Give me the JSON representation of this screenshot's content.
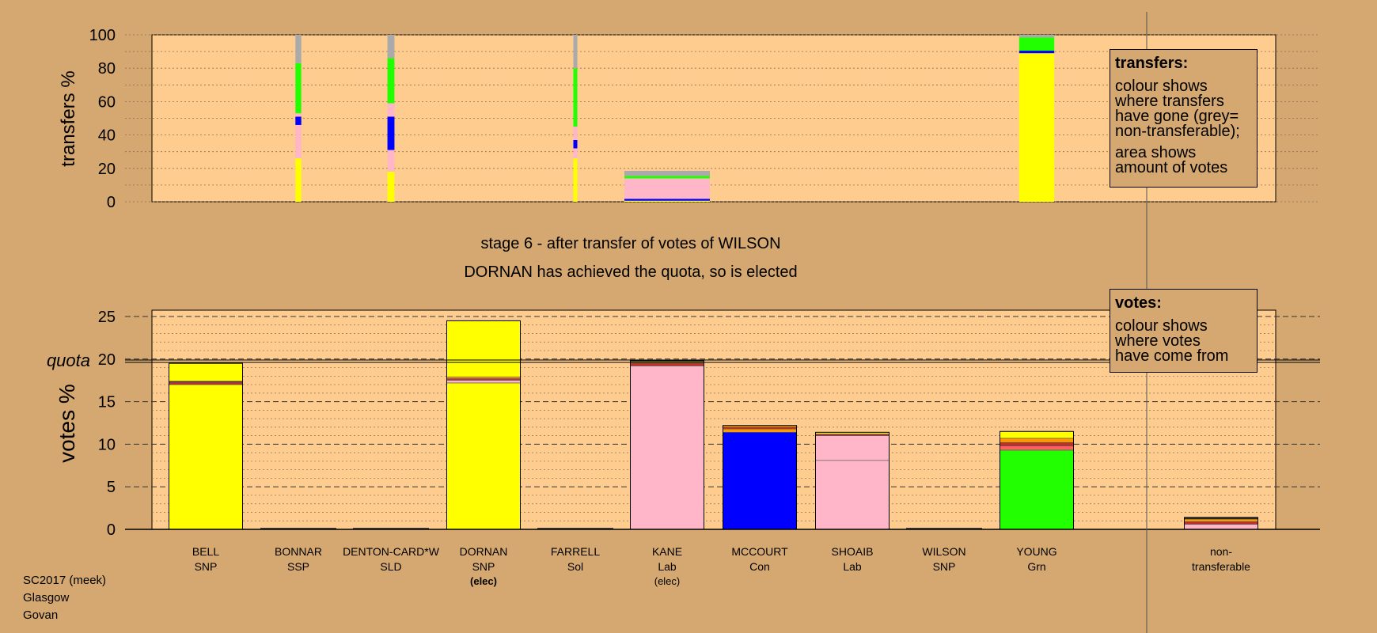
{
  "chart_data": [
    {
      "type": "bar",
      "stacked": true,
      "ylabel": "transfers %",
      "ylim": [
        0,
        100
      ],
      "yticks": [
        0,
        20,
        40,
        60,
        80,
        100
      ],
      "categories": [
        "BELL",
        "BONNAR",
        "DENTON-CARD*W",
        "DORNAN",
        "FARRELL",
        "KANE",
        "MCCOURT",
        "SHOAIB",
        "WILSON",
        "YOUNG"
      ],
      "bar_width_share": [
        0.3,
        0.5,
        0.6,
        0.5,
        0.3,
        7.3,
        0.0,
        0.0,
        0.0,
        3.0
      ],
      "segments": [
        [],
        [
          {
            "color": "#ffff00",
            "value": 26
          },
          {
            "color": "#ffb6c8",
            "value": 14
          },
          {
            "color": "#ffb6c8",
            "value": 6
          },
          {
            "color": "#0000ff",
            "value": 5
          },
          {
            "color": "#ffb6c8",
            "value": 2
          },
          {
            "color": "#22ff00",
            "value": 30
          },
          {
            "color": "#aaaaaa",
            "value": 17
          }
        ],
        [
          {
            "color": "#ffff00",
            "value": 18
          },
          {
            "color": "#ffb6c8",
            "value": 13
          },
          {
            "color": "#0000ff",
            "value": 20
          },
          {
            "color": "#ffb6c8",
            "value": 8
          },
          {
            "color": "#22ff00",
            "value": 27
          },
          {
            "color": "#aaaaaa",
            "value": 14
          }
        ],
        [],
        [
          {
            "color": "#ffff00",
            "value": 26
          },
          {
            "color": "#ffb6c8",
            "value": 6
          },
          {
            "color": "#0000ff",
            "value": 5
          },
          {
            "color": "#ffb6c8",
            "value": 8
          },
          {
            "color": "#22ff00",
            "value": 35
          },
          {
            "color": "#aaaaaa",
            "value": 20
          }
        ],
        [
          {
            "color": "#ffff00",
            "value": 0.6
          },
          {
            "color": "#0000ff",
            "value": 1.2
          },
          {
            "color": "#ffb6c8",
            "value": 12.2
          },
          {
            "color": "#22ff00",
            "value": 1.5
          },
          {
            "color": "#aaaaaa",
            "value": 3
          }
        ],
        [],
        [],
        [],
        [
          {
            "color": "#ffff00",
            "value": 89
          },
          {
            "color": "#0000ff",
            "value": 1.5
          },
          {
            "color": "#22ff00",
            "value": 8
          },
          {
            "color": "#aaaaaa",
            "value": 1.5
          }
        ]
      ],
      "legend": {
        "title": "transfers:",
        "lines": [
          "colour shows",
          "where transfers",
          "have gone (grey=",
          "non-transferable);"
        ],
        "lines2": [
          "area shows",
          "amount of votes"
        ]
      }
    },
    {
      "type": "bar",
      "stacked": true,
      "ylabel": "votes %",
      "ylim": [
        0,
        25
      ],
      "yticks": [
        0,
        5,
        10,
        15,
        20,
        25
      ],
      "quota": 19.7,
      "quota_label": "quota",
      "categories": [
        "BELL",
        "BONNAR",
        "DENTON-CARD*W",
        "DORNAN",
        "FARRELL",
        "KANE",
        "MCCOURT",
        "SHOAIB",
        "WILSON",
        "YOUNG",
        "non-transferable"
      ],
      "parties": [
        "SNP",
        "SSP",
        "SLD",
        "SNP",
        "Sol",
        "Lab",
        "Con",
        "Lab",
        "SNP",
        "Grn",
        "transferable"
      ],
      "status": [
        "",
        "",
        "",
        "(elec)",
        "",
        "(elec)",
        "",
        "",
        "",
        "",
        ""
      ],
      "segments": [
        [
          {
            "color": "#ffff00",
            "value": 17.0
          },
          {
            "color": "#c03028",
            "value": 0.3
          },
          {
            "color": "#222222",
            "value": 0.1
          },
          {
            "color": "#ffff00",
            "value": 2.1
          }
        ],
        [],
        [],
        [
          {
            "color": "#ffff00",
            "value": 17.2
          },
          {
            "color": "#ffb6c8",
            "value": 0.3
          },
          {
            "color": "#c03028",
            "value": 0.2
          },
          {
            "color": "#ff9900",
            "value": 0.2
          },
          {
            "color": "#ffff00",
            "value": 6.6
          }
        ],
        [],
        [
          {
            "color": "#ffb6c8",
            "value": 19.2
          },
          {
            "color": "#c03028",
            "value": 0.3
          },
          {
            "color": "#ff9900",
            "value": 0.2
          },
          {
            "color": "#ffff00",
            "value": 0.1
          }
        ],
        [
          {
            "color": "#0000ff",
            "value": 11.4
          },
          {
            "color": "#ff9900",
            "value": 0.4
          },
          {
            "color": "#c03028",
            "value": 0.2
          },
          {
            "color": "#ff9900",
            "value": 0.2
          }
        ],
        [
          {
            "color": "#ffb6c8",
            "value": 8.1
          },
          {
            "color": "#ffb6c8",
            "value": 2.9
          },
          {
            "color": "#c03028",
            "value": 0.2
          },
          {
            "color": "#ffff00",
            "value": 0.2
          }
        ],
        [],
        [
          {
            "color": "#22ff00",
            "value": 9.3
          },
          {
            "color": "#ff6060",
            "value": 0.5
          },
          {
            "color": "#c03028",
            "value": 0.4
          },
          {
            "color": "#ff9900",
            "value": 0.5
          },
          {
            "color": "#ffff00",
            "value": 0.8
          }
        ],
        [
          {
            "color": "#ffb6c8",
            "value": 0.6
          },
          {
            "color": "#c03028",
            "value": 0.3
          },
          {
            "color": "#ff9900",
            "value": 0.3
          },
          {
            "color": "#222222",
            "value": 0.2
          }
        ]
      ],
      "legend": {
        "title": "votes:",
        "lines": [
          "colour shows",
          "where votes",
          "have come from"
        ]
      }
    }
  ],
  "titles": {
    "stage": "stage 6 - after transfer of votes of WILSON",
    "result": "DORNAN has achieved the quota, so is elected"
  },
  "footer": {
    "line1": "SC2017 (meek)",
    "line2": "Glasgow",
    "line3": "Govan"
  },
  "colors": {
    "background": "#d4a870",
    "plot_background": "#ffcc8f"
  }
}
